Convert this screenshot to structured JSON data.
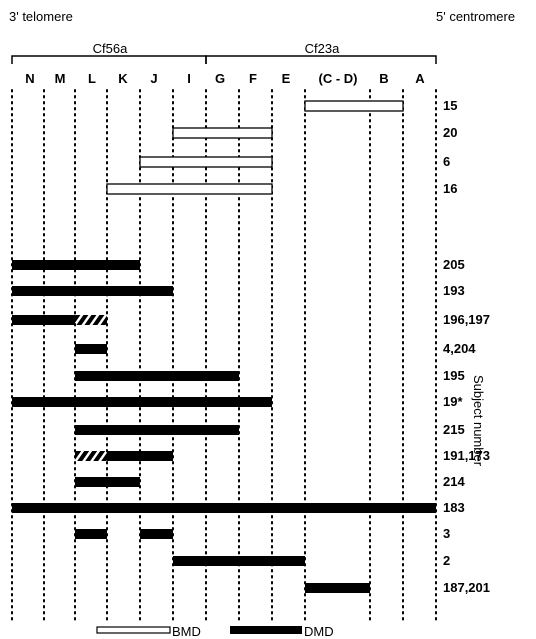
{
  "header": {
    "left_label": "3' telomere",
    "right_label": "5' centromere"
  },
  "clones": [
    {
      "label": "Cf56a",
      "from": "N",
      "to": "I"
    },
    {
      "label": "Cf23a",
      "from": "G",
      "to": "A"
    }
  ],
  "columns": [
    "N",
    "M",
    "L",
    "K",
    "J",
    "I",
    "G",
    "F",
    "E",
    "(C - D)",
    "B",
    "A"
  ],
  "y_axis_title": "Subject number",
  "rows": [
    {
      "subject": "15",
      "type": "BMD",
      "from": 9,
      "to": 11
    },
    {
      "subject": "20",
      "type": "BMD",
      "from": 5,
      "to": 8
    },
    {
      "subject": "6",
      "type": "BMD",
      "from": 4,
      "to": 8
    },
    {
      "subject": "16",
      "type": "BMD",
      "from": 3,
      "to": 8
    },
    {
      "subject": "205",
      "type": "DMD",
      "from": 0,
      "to": 4
    },
    {
      "subject": "193",
      "type": "DMD",
      "from": 0,
      "to": 5
    },
    {
      "subject": "196,197",
      "type": "DMD",
      "from": 0,
      "to": 2,
      "hatched_from": 2,
      "hatched_to": 3
    },
    {
      "subject": "4,204",
      "type": "DMD",
      "from": 2,
      "to": 3
    },
    {
      "subject": "195",
      "type": "DMD",
      "from": 2,
      "to": 7
    },
    {
      "subject": "19*",
      "type": "DMD",
      "from": 0,
      "to": 8
    },
    {
      "subject": "215",
      "type": "DMD",
      "from": 2,
      "to": 7
    },
    {
      "subject": "191,173",
      "type": "DMD",
      "from": 3,
      "to": 5,
      "hatched_from": 2,
      "hatched_to": 3
    },
    {
      "subject": "214",
      "type": "DMD",
      "from": 2,
      "to": 4
    },
    {
      "subject": "183",
      "type": "DMD",
      "from": 0,
      "to": 12
    },
    {
      "subject": "3",
      "type": "DMD",
      "segments": [
        [
          2,
          3
        ],
        [
          4,
          5
        ]
      ]
    },
    {
      "subject": "2",
      "type": "DMD",
      "from": 5,
      "to": 9
    },
    {
      "subject": "187,201",
      "type": "DMD",
      "from": 9,
      "to": 10
    }
  ],
  "legend": {
    "bmd_label": "BMD",
    "dmd_label": "DMD"
  }
}
